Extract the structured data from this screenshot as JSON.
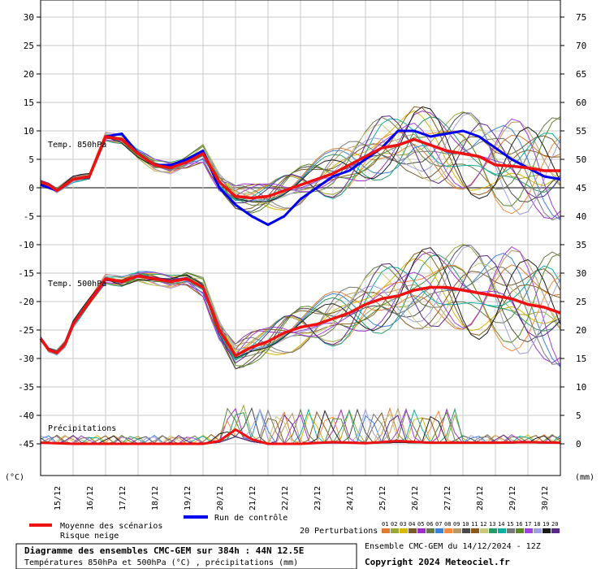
{
  "chart_data": {
    "type": "line",
    "title": "Diagramme des ensembles CMC-GEM sur 384h : 44N 12.5E",
    "subtitle": "Températures 850hPa et 500hPa (°C) , précipitations (mm)",
    "ensemble_info": "Ensemble CMC-GEM du 14/12/2024 - 12Z",
    "copyright": "Copyright 2024 Meteociel.fr",
    "y_left_unit": "(°C)",
    "y_right_unit": "(mm)",
    "y_left_ticks": [
      30,
      25,
      20,
      15,
      10,
      5,
      0,
      -5,
      -10,
      -15,
      -20,
      -25,
      -30,
      -35,
      -40,
      -45
    ],
    "y_right_ticks": [
      75,
      70,
      65,
      60,
      55,
      50,
      45,
      40,
      35,
      30,
      25,
      20,
      15,
      10,
      5,
      0
    ],
    "x_labels": [
      "15/12",
      "16/12",
      "17/12",
      "18/12",
      "19/12",
      "20/12",
      "21/12",
      "22/12",
      "23/12",
      "24/12",
      "25/12",
      "26/12",
      "27/12",
      "28/12",
      "29/12",
      "30/12"
    ],
    "x_range_days": [
      0,
      16
    ],
    "ylim": [
      -50,
      32
    ],
    "panel_labels": [
      "Temp. 850hPa",
      "Temp. 500hPa",
      "Précipitations"
    ],
    "legend": {
      "mean": "Moyenne des scénarios",
      "snow": "Risque neige",
      "control": "Run de contrôle",
      "perturbations": "20 Perturbations",
      "perturbation_ids": [
        "01",
        "02",
        "03",
        "04",
        "05",
        "06",
        "07",
        "08",
        "09",
        "10",
        "11",
        "12",
        "13",
        "14",
        "15",
        "16",
        "17",
        "18",
        "19",
        "20"
      ]
    },
    "colors": {
      "mean": "#ee1111",
      "control": "#0000ee",
      "grid": "#c8c8c8",
      "zero_line": "#808080",
      "perturbations": [
        "#e07a2e",
        "#9aa83a",
        "#d6b800",
        "#7a5a2e",
        "#9a30c8",
        "#6a7a4a",
        "#3a82d6",
        "#ff8a3a",
        "#b89a6a",
        "#4a4a4a",
        "#8a5a1a",
        "#c8c878",
        "#2a9a6a",
        "#0ab0a0",
        "#787878",
        "#5a8a2a",
        "#a040e0",
        "#a0a0e0",
        "#1a1a1a",
        "#5a2a8a"
      ]
    },
    "series": [
      {
        "name": "Temp. 850hPa – Moyenne des scénarios",
        "x_days": [
          0,
          0.25,
          0.5,
          0.75,
          1,
          1.5,
          2,
          2.5,
          3,
          3.5,
          4,
          4.5,
          5,
          5.5,
          6,
          6.5,
          7,
          7.5,
          8,
          8.5,
          9,
          9.5,
          10,
          10.5,
          11,
          11.5,
          12,
          12.5,
          13,
          13.5,
          14,
          14.5,
          15,
          15.5,
          16
        ],
        "values": [
          1,
          0.5,
          -0.5,
          0.5,
          1.5,
          2,
          9,
          8.5,
          6,
          4,
          3.5,
          4.5,
          6,
          1,
          -1.5,
          -1.8,
          -1.5,
          -0.5,
          0.5,
          1.5,
          2.5,
          4,
          5.5,
          7,
          7.5,
          8.5,
          7.5,
          6.5,
          6,
          5.5,
          4,
          3.8,
          3.5,
          3,
          3
        ]
      },
      {
        "name": "Temp. 850hPa – Run de contrôle",
        "x_days": [
          0,
          0.5,
          1,
          1.5,
          2,
          2.5,
          3,
          3.5,
          4,
          4.5,
          5,
          5.5,
          6,
          6.5,
          7,
          7.5,
          8,
          8.5,
          9,
          9.5,
          10,
          10.5,
          11,
          11.5,
          12,
          12.5,
          13,
          13.5,
          14,
          14.5,
          15,
          15.5,
          16
        ],
        "values": [
          0.5,
          -0.5,
          1.5,
          2,
          9,
          9.5,
          6,
          4,
          4,
          5,
          6.5,
          0,
          -3,
          -5,
          -6.5,
          -5,
          -2,
          0,
          2,
          3,
          5,
          7,
          10,
          10,
          9,
          9.5,
          10,
          9,
          7,
          5,
          3.5,
          2,
          1.5
        ]
      },
      {
        "name": "Temp. 500hPa – Moyenne des scénarios",
        "x_days": [
          0,
          0.25,
          0.5,
          0.75,
          1,
          1.5,
          2,
          2.5,
          3,
          3.5,
          4,
          4.5,
          5,
          5.5,
          6,
          6.5,
          7,
          7.5,
          8,
          8.5,
          9,
          9.5,
          10,
          10.5,
          11,
          11.5,
          12,
          12.5,
          13,
          13.5,
          14,
          14.5,
          15,
          15.5,
          16
        ],
        "values": [
          -26.5,
          -28.5,
          -29,
          -27.5,
          -24,
          -20,
          -16,
          -16.5,
          -15.5,
          -16,
          -16.5,
          -16,
          -17.5,
          -25,
          -29.5,
          -28,
          -27,
          -25.5,
          -24.5,
          -24,
          -23,
          -22,
          -20.5,
          -19.5,
          -19,
          -18,
          -17.5,
          -17.5,
          -18,
          -18.5,
          -19,
          -19.5,
          -20.5,
          -21,
          -22
        ]
      },
      {
        "name": "Précipitations – Moyenne des scénarios",
        "unit": "mm",
        "x_days": [
          0,
          1,
          2,
          3,
          4,
          5,
          5.5,
          6,
          6.5,
          7,
          8,
          9,
          10,
          11,
          12,
          13,
          14,
          15,
          16
        ],
        "values": [
          0.2,
          0,
          0,
          0,
          0,
          0,
          0.5,
          2.5,
          0.8,
          0,
          0,
          0.3,
          0.1,
          0.5,
          0.2,
          0.2,
          0.2,
          0.3,
          0.2
        ]
      }
    ]
  }
}
